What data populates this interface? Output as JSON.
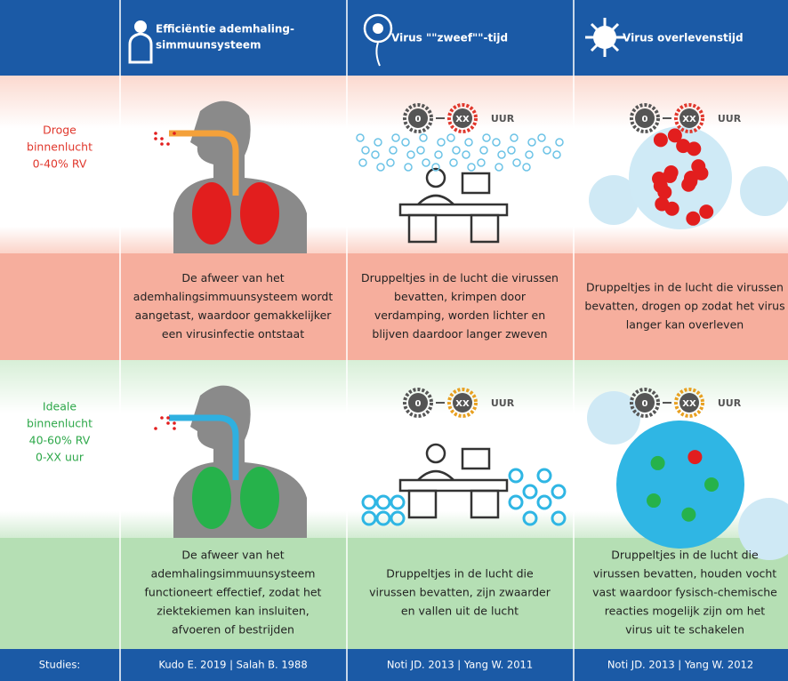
{
  "header": {
    "columns": [
      [
        "Efficiëntie ademhaling-",
        "simmuunsysteem"
      ],
      [
        "Virus \"\"zweef\"\"-tijd"
      ],
      [
        "Virus overlevenstijd"
      ]
    ]
  },
  "rows": [
    {
      "label": [
        "Droge",
        "binnenlucht",
        "0-40% RV"
      ],
      "timers": [
        [
          "0",
          "XX",
          "UUR"
        ],
        [
          "0",
          "XX",
          "UUR"
        ]
      ],
      "texts": [
        [
          "De afweer van het",
          "ademhalingsimmuunsysteem wordt",
          "aangetast, waardoor gemakkelijker",
          "een virusinfectie ontstaat"
        ],
        [
          "Druppeltjes in de lucht die virussen",
          "bevatten, krimpen door",
          "verdamping, worden lichter en",
          "blijven daardoor langer zweven"
        ],
        [
          "Druppeltjes in de lucht die virussen",
          "bevatten, drogen op zodat het virus",
          "langer kan overleven"
        ]
      ]
    },
    {
      "label": [
        "Ideale",
        "binnenlucht",
        "40-60% RV",
        "0-XX uur"
      ],
      "timers": [
        [
          "0",
          "XX",
          "UUR"
        ],
        [
          "0",
          "XX",
          "UUR"
        ]
      ],
      "texts": [
        [
          "De afweer van het",
          "ademhalingsimmuunsysteem",
          "functioneert effectief, zodat het",
          "ziektekiemen kan insluiten,",
          "afvoeren of bestrijden"
        ],
        [
          "Druppeltjes in de lucht die",
          "virussen bevatten, zijn zwaarder",
          "en vallen uit de lucht"
        ],
        [
          "Druppeltjes in de lucht die",
          "virussen bevatten, houden vocht",
          "vast waardoor fysisch-chemische",
          "reacties mogelijk zijn om het",
          "virus uit te schakelen"
        ]
      ]
    }
  ],
  "footer": [
    "Studies:",
    "Kudo E. 2019 | Salah B. 1988",
    "Noti JD. 2013 | Yang W. 2011",
    "Noti JD. 2013 | Yang W. 2012"
  ]
}
